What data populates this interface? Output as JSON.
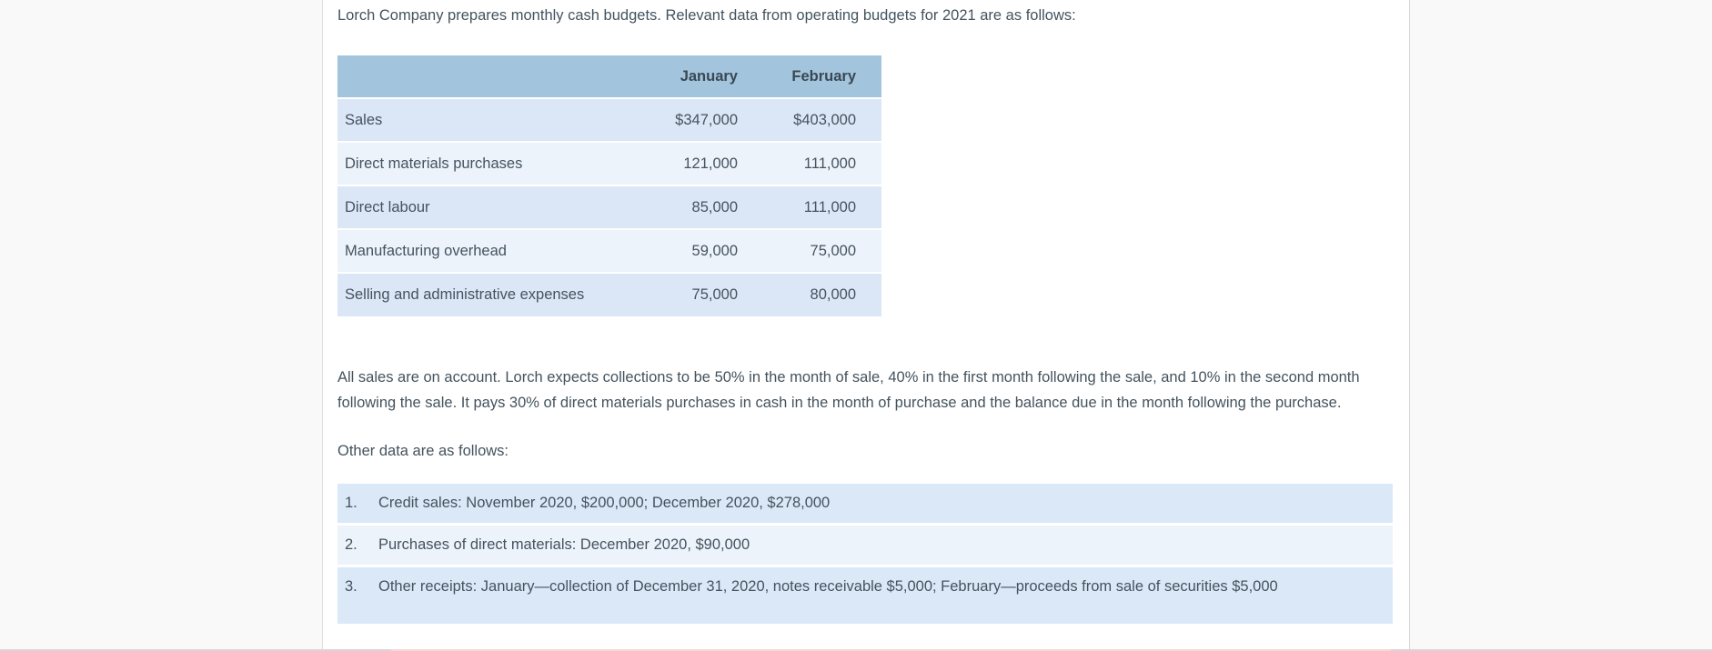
{
  "intro_text": "Lorch Company prepares monthly cash budgets. Relevant data from operating budgets for 2021 are as follows:",
  "budget_table": {
    "columns": [
      "",
      "January",
      "February"
    ],
    "rows": [
      {
        "label": "Sales",
        "january": "$347,000",
        "february": "$403,000"
      },
      {
        "label": "Direct materials purchases",
        "january": "121,000",
        "february": "111,000"
      },
      {
        "label": "Direct labour",
        "january": "85,000",
        "february": "111,000"
      },
      {
        "label": "Manufacturing overhead",
        "january": "59,000",
        "february": "75,000"
      },
      {
        "label": "Selling and administrative expenses",
        "january": "75,000",
        "february": "80,000"
      }
    ]
  },
  "collections_paragraph": "All sales are on account. Lorch expects collections to be 50% in the month of sale, 40% in the first month following the sale, and 10% in the second month following the sale. It pays 30% of direct materials purchases in cash in the month of purchase and the balance due in the month following the purchase.",
  "other_data_label": "Other data are as follows:",
  "other_data_list": [
    {
      "number": "1.",
      "text": "Credit sales: November 2020, $200,000; December 2020, $278,000"
    },
    {
      "number": "2.",
      "text": "Purchases of direct materials: December 2020, $90,000"
    },
    {
      "number": "3.",
      "text": "Other receipts: January—collection of December 31, 2020, notes receivable $5,000; February—proceeds from sale of securities $5,000"
    }
  ],
  "colors": {
    "page_background": "#f9f9f9",
    "content_background": "#ffffff",
    "table_header": "#a3c4dd",
    "stripe_dark": "#dbe7f7",
    "stripe_light": "#edf3fb",
    "body_text": "#44535e"
  }
}
